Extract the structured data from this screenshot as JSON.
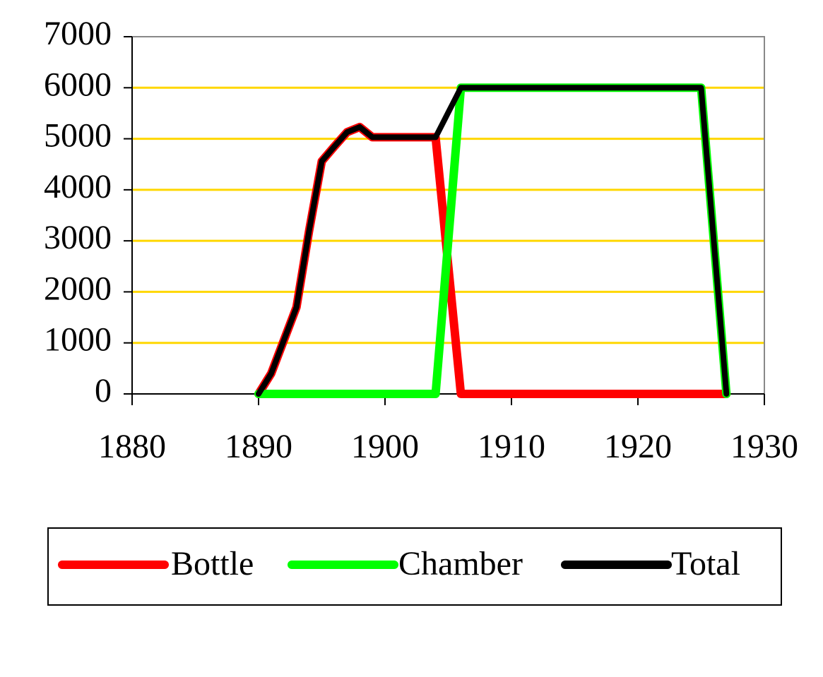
{
  "chart_data": {
    "type": "line",
    "x": [
      1890,
      1891,
      1892,
      1893,
      1894,
      1895,
      1896,
      1897,
      1898,
      1899,
      1900,
      1901,
      1902,
      1903,
      1904,
      1905,
      1906,
      1907,
      1908,
      1909,
      1910,
      1911,
      1912,
      1913,
      1914,
      1915,
      1916,
      1917,
      1918,
      1919,
      1920,
      1921,
      1922,
      1923,
      1924,
      1925,
      1926,
      1927
    ],
    "series": [
      {
        "name": "Bottle",
        "color": "#ff0000",
        "values": [
          0,
          400,
          1050,
          1700,
          3200,
          4560,
          4850,
          5130,
          5230,
          5030,
          5030,
          5030,
          5030,
          5030,
          5030,
          2515,
          0,
          0,
          0,
          0,
          0,
          0,
          0,
          0,
          0,
          0,
          0,
          0,
          0,
          0,
          0,
          0,
          0,
          0,
          0,
          0,
          0,
          0
        ]
      },
      {
        "name": "Chamber",
        "color": "#00ff00",
        "values": [
          0,
          0,
          0,
          0,
          0,
          0,
          0,
          0,
          0,
          0,
          0,
          0,
          0,
          0,
          0,
          3000,
          6000,
          6000,
          6000,
          6000,
          6000,
          6000,
          6000,
          6000,
          6000,
          6000,
          6000,
          6000,
          6000,
          6000,
          6000,
          6000,
          6000,
          6000,
          6000,
          6000,
          3000,
          0
        ]
      },
      {
        "name": "Total",
        "color": "#000000",
        "values": [
          0,
          400,
          1050,
          1700,
          3200,
          4560,
          4850,
          5130,
          5230,
          5030,
          5030,
          5030,
          5030,
          5030,
          5030,
          5515,
          6000,
          6000,
          6000,
          6000,
          6000,
          6000,
          6000,
          6000,
          6000,
          6000,
          6000,
          6000,
          6000,
          6000,
          6000,
          6000,
          6000,
          6000,
          6000,
          6000,
          3000,
          0
        ]
      }
    ],
    "xlim": [
      1880,
      1930
    ],
    "xticks": [
      1880,
      1890,
      1900,
      1910,
      1920,
      1930
    ],
    "ylim": [
      0,
      7000
    ],
    "yticks": [
      0,
      1000,
      2000,
      3000,
      4000,
      5000,
      6000,
      7000
    ],
    "grid": true,
    "grid_color": "#ffd700",
    "legend": "bottom"
  }
}
